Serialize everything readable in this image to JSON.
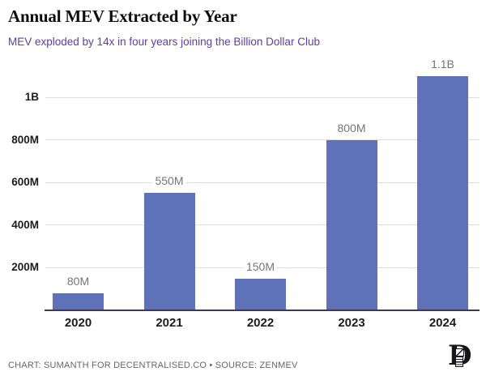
{
  "header": {
    "title": "Annual MEV Extracted by Year",
    "subtitle": "MEV exploded by 14x in four years joining the Billion Dollar Club"
  },
  "chart_data": {
    "type": "bar",
    "title": "Annual MEV Extracted by Year",
    "subtitle": "MEV exploded by 14x in four years joining the Billion Dollar Club",
    "categories": [
      "2020",
      "2021",
      "2022",
      "2023",
      "2024"
    ],
    "values": [
      80,
      550,
      150,
      800,
      1100
    ],
    "values_unit": "millions",
    "value_labels": [
      "80M",
      "550M",
      "150M",
      "800M",
      "1.1B"
    ],
    "xlabel": "",
    "ylabel": "",
    "y_axis": {
      "ticks": [
        {
          "value": 200,
          "label": "200M"
        },
        {
          "value": 400,
          "label": "400M"
        },
        {
          "value": 600,
          "label": "600M"
        },
        {
          "value": 800,
          "label": "800M"
        },
        {
          "value": 1000,
          "label": "1B"
        }
      ],
      "range_millions": [
        0,
        1150
      ],
      "grid": true
    },
    "legend": "none",
    "colors": {
      "bar": "#5f71b7",
      "gridline": "#dedede",
      "baseline": "#3c3a55",
      "axis_label": "#1c1c1c",
      "value_label": "#757575",
      "subtitle_accent": "#5b3ea8"
    }
  },
  "footer": {
    "credit": "CHART: SUMANTH FOR DECENTRALISED.CO • SOURCE: ZENMEV",
    "logo_icon": "decentralised-blackletter-d-logo",
    "logo_letter": "D"
  }
}
